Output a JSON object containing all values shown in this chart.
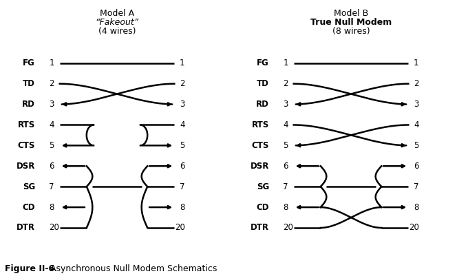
{
  "bg_color": "#ffffff",
  "text_color": "#000000",
  "line_color": "#000000",
  "fig_caption_bold": "Figure II-6",
  "fig_caption_normal": "  Asynchronous Null Modem Schematics",
  "modelA_line1": "Model A",
  "modelA_line2": "“Fakeout”",
  "modelA_line3": "(4 wires)",
  "modelB_line1": "Model B",
  "modelB_line2": "True Null Modem",
  "modelB_line3": "(8 wires)",
  "pins": [
    "FG",
    "TD",
    "RD",
    "RTS",
    "CTS",
    "DSR",
    "SG",
    "CD",
    "DTR"
  ],
  "pin_nums": [
    "1",
    "2",
    "3",
    "4",
    "5",
    "6",
    "7",
    "8",
    "20"
  ],
  "pin_y": [
    8.0,
    7.0,
    6.0,
    5.0,
    4.0,
    3.0,
    2.0,
    1.0,
    0.0
  ]
}
